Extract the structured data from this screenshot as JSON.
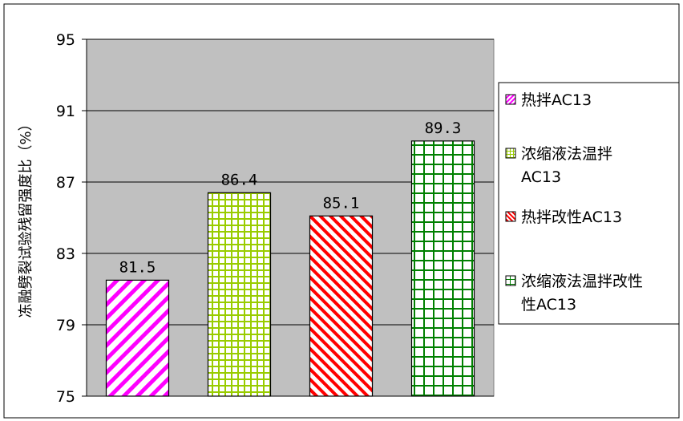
{
  "chart_data": {
    "type": "bar",
    "ylabel": "冻融劈裂试验残留强度比（%）",
    "ylim": [
      75,
      95
    ],
    "yticks": [
      75,
      79,
      83,
      87,
      91,
      95
    ],
    "grid": true,
    "legend_position": "right",
    "categories": [
      "热拌AC13",
      "浓缩液法温拌AC13",
      "热拌改性AC13",
      "浓缩液法温拌改性AC13"
    ],
    "values": [
      81.5,
      86.4,
      85.1,
      89.3
    ],
    "value_labels": [
      "81.5",
      "86.4",
      "85.1",
      "89.3"
    ],
    "legend": [
      {
        "lines": [
          "热拌AC13"
        ]
      },
      {
        "lines": [
          "浓缩液法温拌",
          "AC13"
        ]
      },
      {
        "lines": [
          "热拌改性AC13"
        ]
      },
      {
        "lines": [
          "浓缩液法温拌改性",
          "性AC13"
        ]
      }
    ],
    "colors": {
      "plot_background": "#c0c0c0",
      "bar1": "#ff00ff",
      "bar2": "#99cc00",
      "bar3": "#ff0000",
      "bar4": "#008000"
    }
  }
}
